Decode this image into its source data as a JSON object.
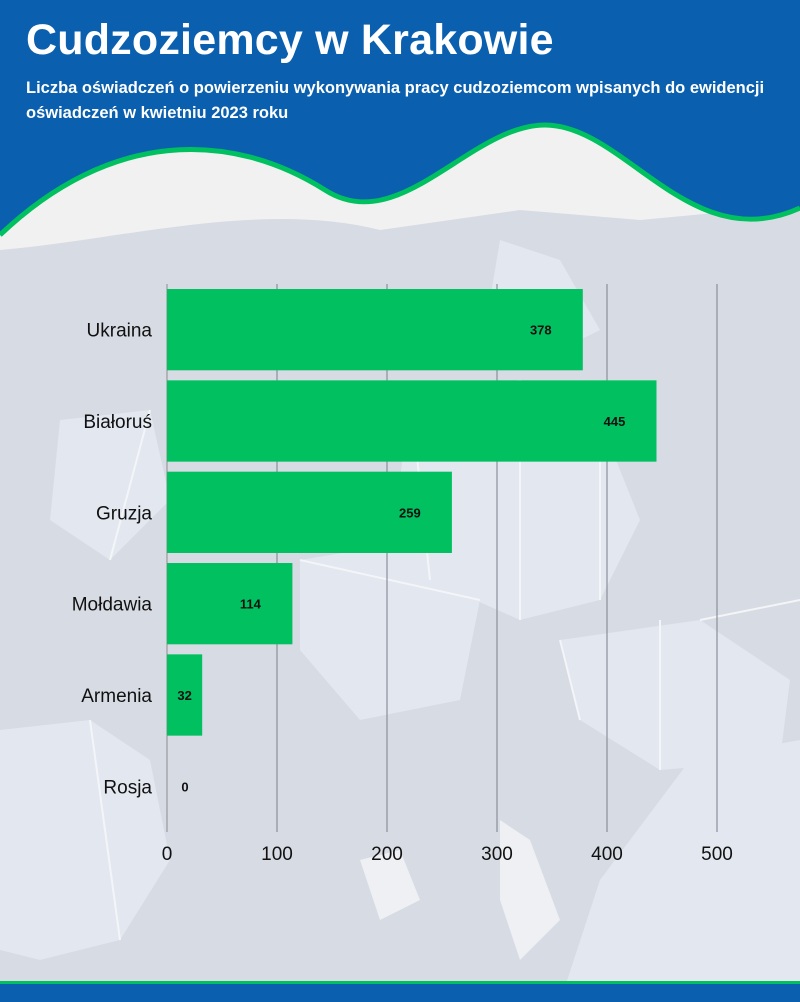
{
  "header": {
    "title": "Cudzoziemcy w Krakowie",
    "subtitle": "Liczba oświadczeń o powierzeniu wykonywania pracy cudzoziemcom wpisanych do ewidencji oświadczeń w kwietniu 2023 roku"
  },
  "colors": {
    "header_blue": "#0a5fae",
    "accent_green": "#00c060",
    "bar_green": "#00c060",
    "background": "#f1f1f1",
    "map_land": "#d7dbe3",
    "map_land_light": "#e2e7f0"
  },
  "chart_data": {
    "type": "bar",
    "orientation": "horizontal",
    "title": "Cudzoziemcy w Krakowie",
    "subtitle": "Liczba oświadczeń o powierzeniu wykonywania pracy cudzoziemcom wpisanych do ewidencji oświadczeń w kwietniu 2023 roku",
    "categories": [
      "Ukraina",
      "Białoruś",
      "Gruzja",
      "Mołdawia",
      "Armenia",
      "Rosja"
    ],
    "values": [
      378,
      445,
      259,
      114,
      32,
      0
    ],
    "xlim": [
      0,
      500
    ],
    "xticks": [
      "0",
      "100",
      "200",
      "300",
      "400",
      "500"
    ],
    "xlabel": "",
    "ylabel": "",
    "grid": "vertical",
    "data_labels": true,
    "legend": "none"
  }
}
